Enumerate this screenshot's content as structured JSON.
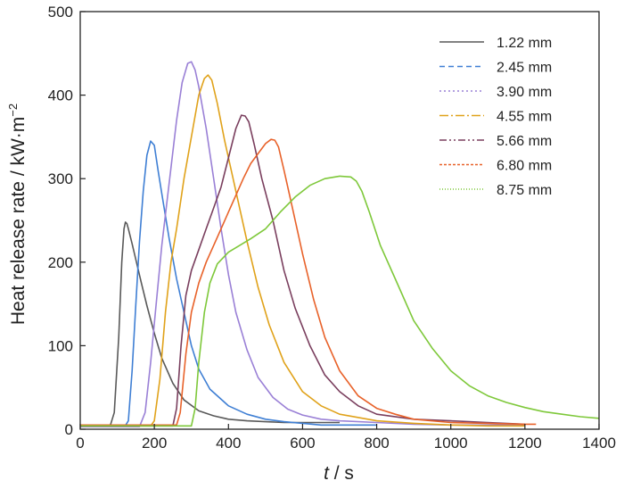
{
  "chart_data": {
    "type": "line",
    "title": "",
    "xlabel": {
      "var": "t",
      "unit": " / s"
    },
    "ylabel": {
      "text": "Heat release rate / kW·m",
      "sup": "−2"
    },
    "xlim": [
      0,
      1400
    ],
    "ylim": [
      0,
      500
    ],
    "xticks": [
      0,
      200,
      400,
      600,
      800,
      1000,
      1200,
      1400
    ],
    "yticks": [
      0,
      100,
      200,
      300,
      400,
      500
    ],
    "grid": false,
    "legend_position": "top-right",
    "series": [
      {
        "name": "1.22 mm",
        "color": "#595959",
        "dash": "solid",
        "x": [
          0,
          80,
          92,
          104,
          112,
          118,
          122,
          126,
          130,
          140,
          150,
          165,
          180,
          200,
          220,
          250,
          280,
          320,
          360,
          400,
          450,
          500,
          550,
          600,
          650,
          700
        ],
        "y": [
          3,
          3,
          20,
          110,
          200,
          240,
          248,
          246,
          240,
          222,
          203,
          175,
          148,
          115,
          85,
          55,
          35,
          22,
          16,
          12,
          10,
          9,
          8,
          8,
          8,
          8
        ]
      },
      {
        "name": "2.45 mm",
        "color": "#3f7fd4",
        "dash": "6,4",
        "x": [
          0,
          120,
          130,
          140,
          150,
          160,
          170,
          180,
          190,
          200,
          210,
          220,
          240,
          260,
          280,
          300,
          320,
          350,
          400,
          450,
          500,
          550,
          600,
          650,
          700,
          800
        ],
        "y": [
          3,
          3,
          10,
          70,
          150,
          225,
          285,
          328,
          345,
          340,
          310,
          282,
          228,
          180,
          140,
          100,
          72,
          48,
          28,
          18,
          12,
          9,
          7,
          5,
          5,
          5
        ]
      },
      {
        "name": "3.90 mm",
        "color": "#9a80d6",
        "dash": "2,3",
        "x": [
          0,
          160,
          175,
          190,
          205,
          220,
          240,
          260,
          275,
          290,
          300,
          310,
          320,
          340,
          360,
          380,
          400,
          420,
          450,
          480,
          520,
          560,
          600,
          650,
          700,
          800,
          900,
          1000,
          1200
        ],
        "y": [
          3,
          3,
          20,
          80,
          150,
          220,
          295,
          370,
          415,
          438,
          440,
          430,
          410,
          360,
          300,
          240,
          185,
          140,
          95,
          62,
          38,
          24,
          17,
          12,
          10,
          8,
          6,
          5,
          5
        ]
      },
      {
        "name": "4.55 mm",
        "color": "#e0a21a",
        "dash": "10,3,2,3",
        "x": [
          0,
          190,
          200,
          215,
          230,
          245,
          260,
          280,
          300,
          320,
          335,
          345,
          355,
          370,
          390,
          420,
          450,
          480,
          510,
          550,
          600,
          650,
          700,
          800,
          900,
          1000,
          1100,
          1200
        ],
        "y": [
          4,
          4,
          10,
          60,
          140,
          200,
          240,
          300,
          350,
          400,
          420,
          424,
          418,
          390,
          345,
          285,
          225,
          170,
          125,
          80,
          45,
          28,
          18,
          10,
          7,
          5,
          4,
          4
        ]
      },
      {
        "name": "5.66 mm",
        "color": "#7a3f5e",
        "dash": "8,3,2,3,2,3",
        "x": [
          0,
          250,
          260,
          272,
          285,
          300,
          320,
          340,
          360,
          380,
          400,
          420,
          435,
          445,
          455,
          470,
          490,
          520,
          550,
          580,
          620,
          660,
          700,
          750,
          800,
          900,
          1000,
          1100,
          1200
        ],
        "y": [
          4,
          4,
          25,
          100,
          160,
          190,
          215,
          240,
          265,
          290,
          325,
          360,
          376,
          375,
          368,
          340,
          300,
          250,
          190,
          145,
          100,
          65,
          45,
          28,
          18,
          12,
          10,
          8,
          6
        ]
      },
      {
        "name": "6.80 mm",
        "color": "#e8622a",
        "dash": "3,2",
        "x": [
          0,
          260,
          270,
          285,
          300,
          320,
          340,
          360,
          380,
          400,
          420,
          440,
          460,
          480,
          500,
          515,
          525,
          535,
          550,
          570,
          600,
          630,
          660,
          700,
          750,
          800,
          850,
          900,
          1000,
          1100,
          1200,
          1230
        ],
        "y": [
          5,
          5,
          20,
          90,
          140,
          175,
          200,
          220,
          240,
          260,
          280,
          300,
          318,
          330,
          342,
          347,
          346,
          338,
          310,
          270,
          210,
          155,
          110,
          70,
          40,
          25,
          18,
          12,
          8,
          7,
          6,
          6
        ]
      },
      {
        "name": "8.75 mm",
        "color": "#7ec83a",
        "dash": "1,2",
        "x": [
          0,
          300,
          310,
          320,
          335,
          350,
          370,
          400,
          430,
          460,
          500,
          540,
          580,
          620,
          660,
          700,
          730,
          745,
          760,
          780,
          810,
          850,
          900,
          950,
          1000,
          1050,
          1100,
          1150,
          1200,
          1250,
          1300,
          1350,
          1400
        ],
        "y": [
          4,
          4,
          25,
          80,
          140,
          175,
          198,
          212,
          220,
          228,
          240,
          260,
          278,
          292,
          300,
          303,
          302,
          297,
          285,
          260,
          220,
          180,
          130,
          97,
          70,
          52,
          40,
          32,
          26,
          21,
          18,
          15,
          13
        ]
      }
    ]
  }
}
